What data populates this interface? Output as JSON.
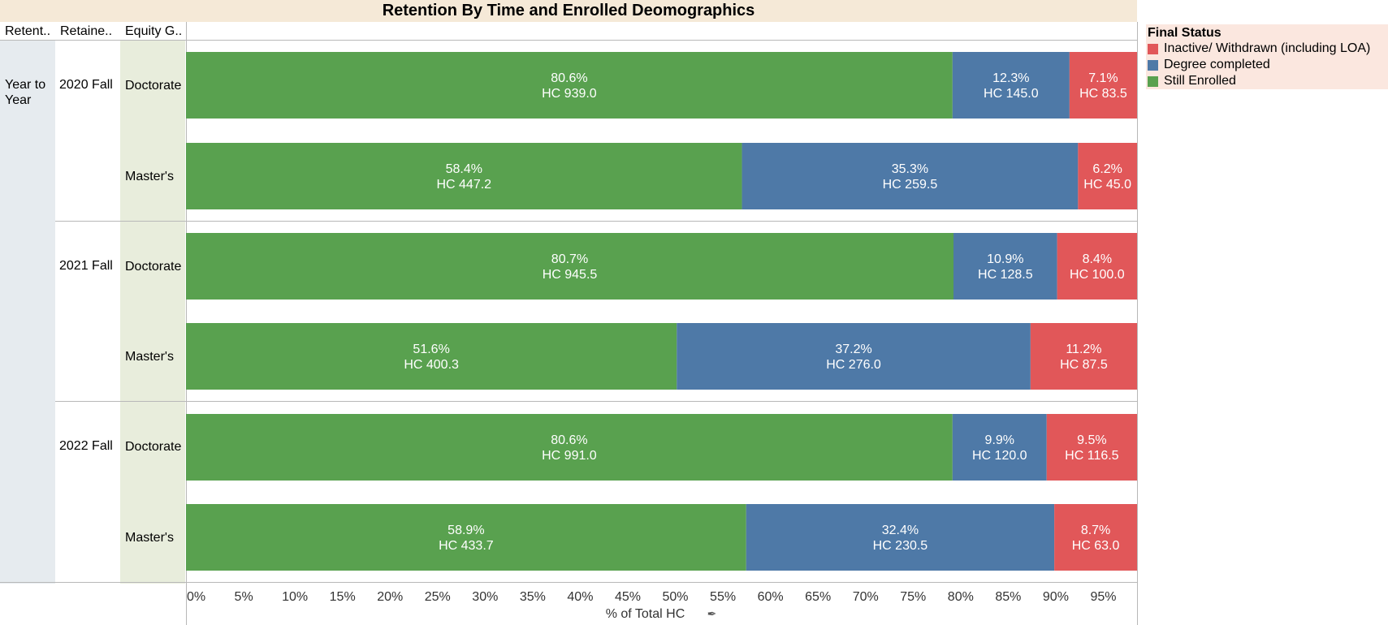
{
  "title": "Retention By Time and Enrolled Deomographics",
  "headers": {
    "col1": "Retent..",
    "col2": "Retaine..",
    "col3": "Equity G.."
  },
  "retention_label": "Year to Year",
  "groups": [
    {
      "term": "2020 Fall"
    },
    {
      "term": "2021 Fall"
    },
    {
      "term": "2022 Fall"
    }
  ],
  "legend": {
    "title": "Final Status",
    "items": [
      {
        "label": "Inactive/ Withdrawn (including LOA)",
        "color": "#e15759"
      },
      {
        "label": "Degree completed",
        "color": "#4e79a7"
      },
      {
        "label": "Still Enrolled",
        "color": "#59a14f"
      }
    ]
  },
  "chart_data": {
    "type": "bar",
    "orientation": "horizontal",
    "stacked": true,
    "title": "Retention By Time and Enrolled Deomographics",
    "xlabel": "% of Total HC",
    "xlim": [
      0,
      100
    ],
    "xticks": [
      "0%",
      "5%",
      "10%",
      "15%",
      "20%",
      "25%",
      "30%",
      "35%",
      "40%",
      "45%",
      "50%",
      "55%",
      "60%",
      "65%",
      "70%",
      "75%",
      "80%",
      "85%",
      "90%",
      "95%"
    ],
    "rows": [
      {
        "term": "2020 Fall",
        "group": "Doctorate"
      },
      {
        "term": "2020 Fall",
        "group": "Master's"
      },
      {
        "term": "2021 Fall",
        "group": "Doctorate"
      },
      {
        "term": "2021 Fall",
        "group": "Master's"
      },
      {
        "term": "2022 Fall",
        "group": "Doctorate"
      },
      {
        "term": "2022 Fall",
        "group": "Master's"
      }
    ],
    "series": [
      {
        "name": "Still Enrolled",
        "color": "#59a14f",
        "values": [
          80.6,
          58.4,
          80.7,
          51.6,
          80.6,
          58.9
        ],
        "hc": [
          "HC 939.0",
          "HC 447.2",
          "HC 945.5",
          "HC 400.3",
          "HC 991.0",
          "HC 433.7"
        ]
      },
      {
        "name": "Degree completed",
        "color": "#4e79a7",
        "values": [
          12.3,
          35.3,
          10.9,
          37.2,
          9.9,
          32.4
        ],
        "hc": [
          "HC 145.0",
          "HC 259.5",
          "HC 128.5",
          "HC 276.0",
          "HC 120.0",
          "HC 230.5"
        ]
      },
      {
        "name": "Inactive/ Withdrawn (including LOA)",
        "color": "#e15759",
        "values": [
          7.1,
          6.2,
          8.4,
          11.2,
          9.5,
          8.7
        ],
        "hc": [
          "HC 83.5",
          "HC 45.0",
          "HC 100.0",
          "HC 87.5",
          "HC 116.5",
          "HC 63.0"
        ]
      }
    ]
  }
}
